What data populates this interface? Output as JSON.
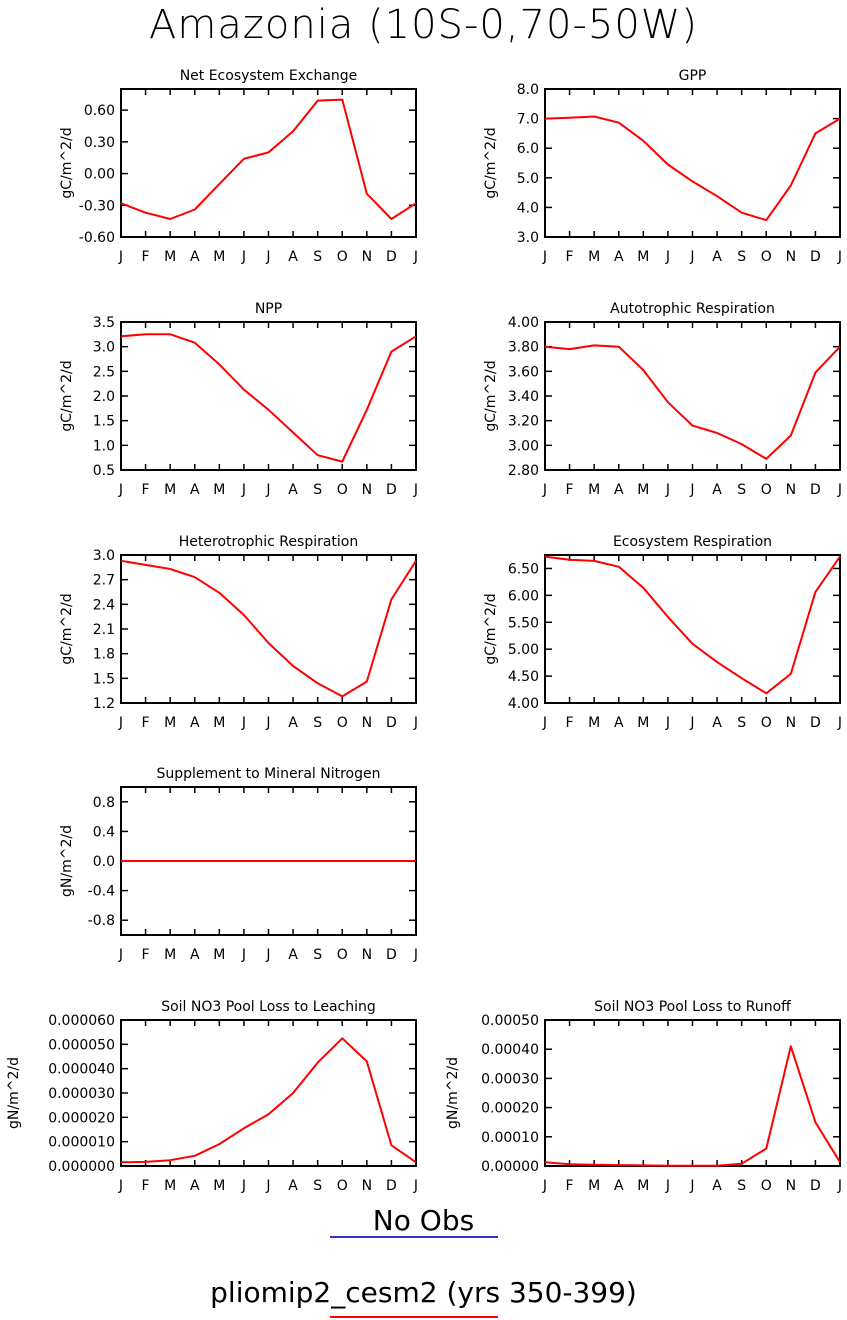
{
  "title": "Amazonia (10S-0,70-50W)",
  "legend": [
    {
      "label": "No Obs",
      "color": "#3333cc"
    },
    {
      "label": "pliomip2_cesm2 (yrs 350-399)",
      "color": "#ff0000"
    }
  ],
  "series_color": "#ff0000",
  "chart_data": [
    {
      "type": "line",
      "title": "Net Ecosystem Exchange",
      "ylabel": "gC/m^2/d",
      "x": [
        "J",
        "F",
        "M",
        "A",
        "M",
        "J",
        "J",
        "A",
        "S",
        "O",
        "N",
        "D",
        "J"
      ],
      "ylim": [
        -0.6,
        0.8
      ],
      "yticks": [
        "-0.60",
        "-0.30",
        "0.00",
        "0.30",
        "0.60"
      ],
      "values": [
        -0.28,
        -0.37,
        -0.43,
        -0.34,
        -0.1,
        0.14,
        0.2,
        0.4,
        0.69,
        0.7,
        -0.19,
        -0.43,
        -0.28
      ]
    },
    {
      "type": "line",
      "title": "GPP",
      "ylabel": "gC/m^2/d",
      "x": [
        "J",
        "F",
        "M",
        "A",
        "M",
        "J",
        "J",
        "A",
        "S",
        "O",
        "N",
        "D",
        "J"
      ],
      "ylim": [
        3.0,
        8.0
      ],
      "yticks": [
        "3.0",
        "4.0",
        "5.0",
        "6.0",
        "7.0",
        "8.0"
      ],
      "values": [
        7.0,
        7.03,
        7.07,
        6.86,
        6.25,
        5.45,
        4.88,
        4.38,
        3.82,
        3.57,
        4.74,
        6.5,
        7.0
      ]
    },
    {
      "type": "line",
      "title": "NPP",
      "ylabel": "gC/m^2/d",
      "x": [
        "J",
        "F",
        "M",
        "A",
        "M",
        "J",
        "J",
        "A",
        "S",
        "O",
        "N",
        "D",
        "J"
      ],
      "ylim": [
        0.5,
        3.5
      ],
      "yticks": [
        "0.5",
        "1.0",
        "1.5",
        "2.0",
        "2.5",
        "3.0",
        "3.5"
      ],
      "values": [
        3.21,
        3.25,
        3.25,
        3.08,
        2.64,
        2.13,
        1.72,
        1.26,
        0.8,
        0.67,
        1.72,
        2.9,
        3.21
      ]
    },
    {
      "type": "line",
      "title": "Autotrophic Respiration",
      "ylabel": "gC/m^2/d",
      "x": [
        "J",
        "F",
        "M",
        "A",
        "M",
        "J",
        "J",
        "A",
        "S",
        "O",
        "N",
        "D",
        "J"
      ],
      "ylim": [
        2.8,
        4.0
      ],
      "yticks": [
        "2.80",
        "3.00",
        "3.20",
        "3.40",
        "3.60",
        "3.80",
        "4.00"
      ],
      "values": [
        3.8,
        3.78,
        3.81,
        3.8,
        3.61,
        3.35,
        3.16,
        3.1,
        3.01,
        2.89,
        3.08,
        3.59,
        3.8
      ]
    },
    {
      "type": "line",
      "title": "Heterotrophic Respiration",
      "ylabel": "gC/m^2/d",
      "x": [
        "J",
        "F",
        "M",
        "A",
        "M",
        "J",
        "J",
        "A",
        "S",
        "O",
        "N",
        "D",
        "J"
      ],
      "ylim": [
        1.2,
        3.0
      ],
      "yticks": [
        "1.2",
        "1.5",
        "1.8",
        "2.1",
        "2.4",
        "2.7",
        "3.0"
      ],
      "values": [
        2.93,
        2.88,
        2.83,
        2.73,
        2.54,
        2.27,
        1.93,
        1.65,
        1.44,
        1.28,
        1.46,
        2.46,
        2.93
      ]
    },
    {
      "type": "line",
      "title": "Ecosystem Respiration",
      "ylabel": "gC/m^2/d",
      "x": [
        "J",
        "F",
        "M",
        "A",
        "M",
        "J",
        "J",
        "A",
        "S",
        "O",
        "N",
        "D",
        "J"
      ],
      "ylim": [
        4.0,
        6.75
      ],
      "yticks": [
        "4.00",
        "4.50",
        "5.00",
        "5.50",
        "6.00",
        "6.50"
      ],
      "values": [
        6.72,
        6.66,
        6.64,
        6.53,
        6.14,
        5.6,
        5.1,
        4.76,
        4.46,
        4.18,
        4.54,
        6.06,
        6.72
      ]
    },
    {
      "type": "line",
      "title": "Supplement to Mineral Nitrogen",
      "ylabel": "gN/m^2/d",
      "x": [
        "J",
        "F",
        "M",
        "A",
        "M",
        "J",
        "J",
        "A",
        "S",
        "O",
        "N",
        "D",
        "J"
      ],
      "ylim": [
        -1.0,
        1.0
      ],
      "yticks": [
        "-0.8",
        "-0.4",
        "0.0",
        "0.4",
        "0.8"
      ],
      "values": [
        0,
        0,
        0,
        0,
        0,
        0,
        0,
        0,
        0,
        0,
        0,
        0,
        0
      ]
    },
    null,
    {
      "type": "line",
      "title": "Soil NO3 Pool Loss to Leaching",
      "ylabel": "gN/m^2/d",
      "x": [
        "J",
        "F",
        "M",
        "A",
        "M",
        "J",
        "J",
        "A",
        "S",
        "O",
        "N",
        "D",
        "J"
      ],
      "ylim": [
        0,
        6e-05
      ],
      "yticks": [
        "0.000000",
        "0.000010",
        "0.000020",
        "0.000030",
        "0.000040",
        "0.000050",
        "0.000060"
      ],
      "values": [
        1.5e-06,
        1.7e-06,
        2.4e-06,
        4.2e-06,
        9e-06,
        1.55e-05,
        2.13e-05,
        3e-05,
        4.25e-05,
        5.25e-05,
        4.3e-05,
        8.5e-06,
        1.5e-06
      ]
    },
    {
      "type": "line",
      "title": "Soil NO3 Pool Loss to Runoff",
      "ylabel": "gN/m^2/d",
      "x": [
        "J",
        "F",
        "M",
        "A",
        "M",
        "J",
        "J",
        "A",
        "S",
        "O",
        "N",
        "D",
        "J"
      ],
      "ylim": [
        0,
        0.0005
      ],
      "yticks": [
        "0.00000",
        "0.00010",
        "0.00020",
        "0.00030",
        "0.00040",
        "0.00050"
      ],
      "values": [
        1.3e-05,
        6e-06,
        4e-06,
        3e-06,
        2e-06,
        1e-06,
        1e-06,
        1e-06,
        8e-06,
        6e-05,
        0.00041,
        0.00015,
        1.3e-05
      ]
    }
  ]
}
